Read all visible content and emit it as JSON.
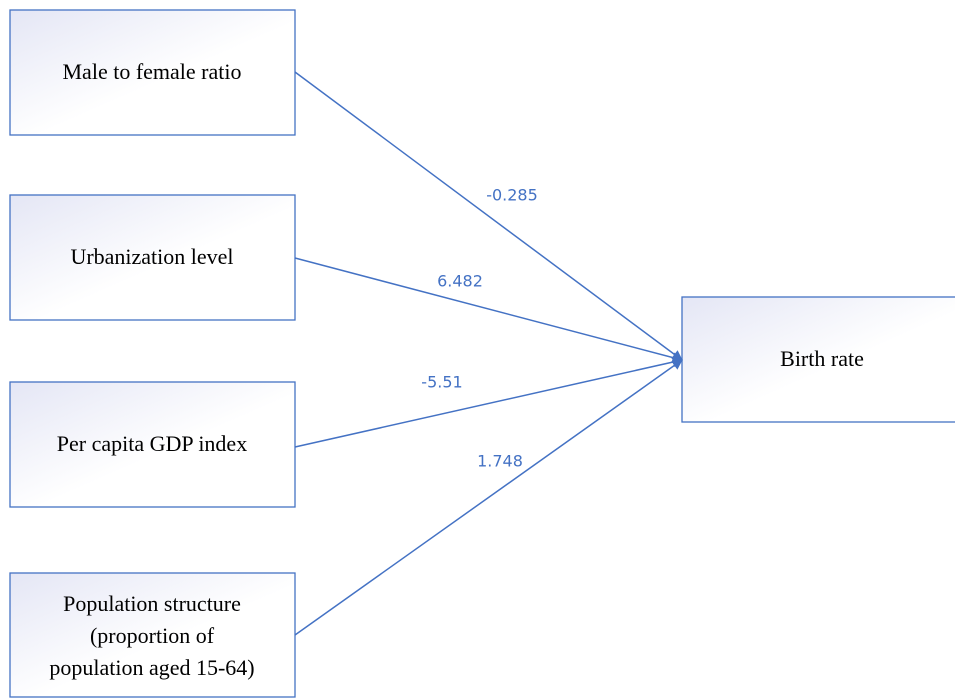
{
  "nodes": [
    {
      "label": [
        "Male to female ratio"
      ]
    },
    {
      "label": [
        "Urbanization level"
      ]
    },
    {
      "label": [
        "Per capita GDP index"
      ]
    },
    {
      "label": [
        "Population structure",
        "(proportion of",
        "population aged 15-64)"
      ]
    },
    {
      "label": [
        "Birth rate"
      ]
    }
  ],
  "edges": [
    {
      "label": "-0.285"
    },
    {
      "label": "6.482"
    },
    {
      "label": "-5.51"
    },
    {
      "label": "1.748"
    }
  ]
}
